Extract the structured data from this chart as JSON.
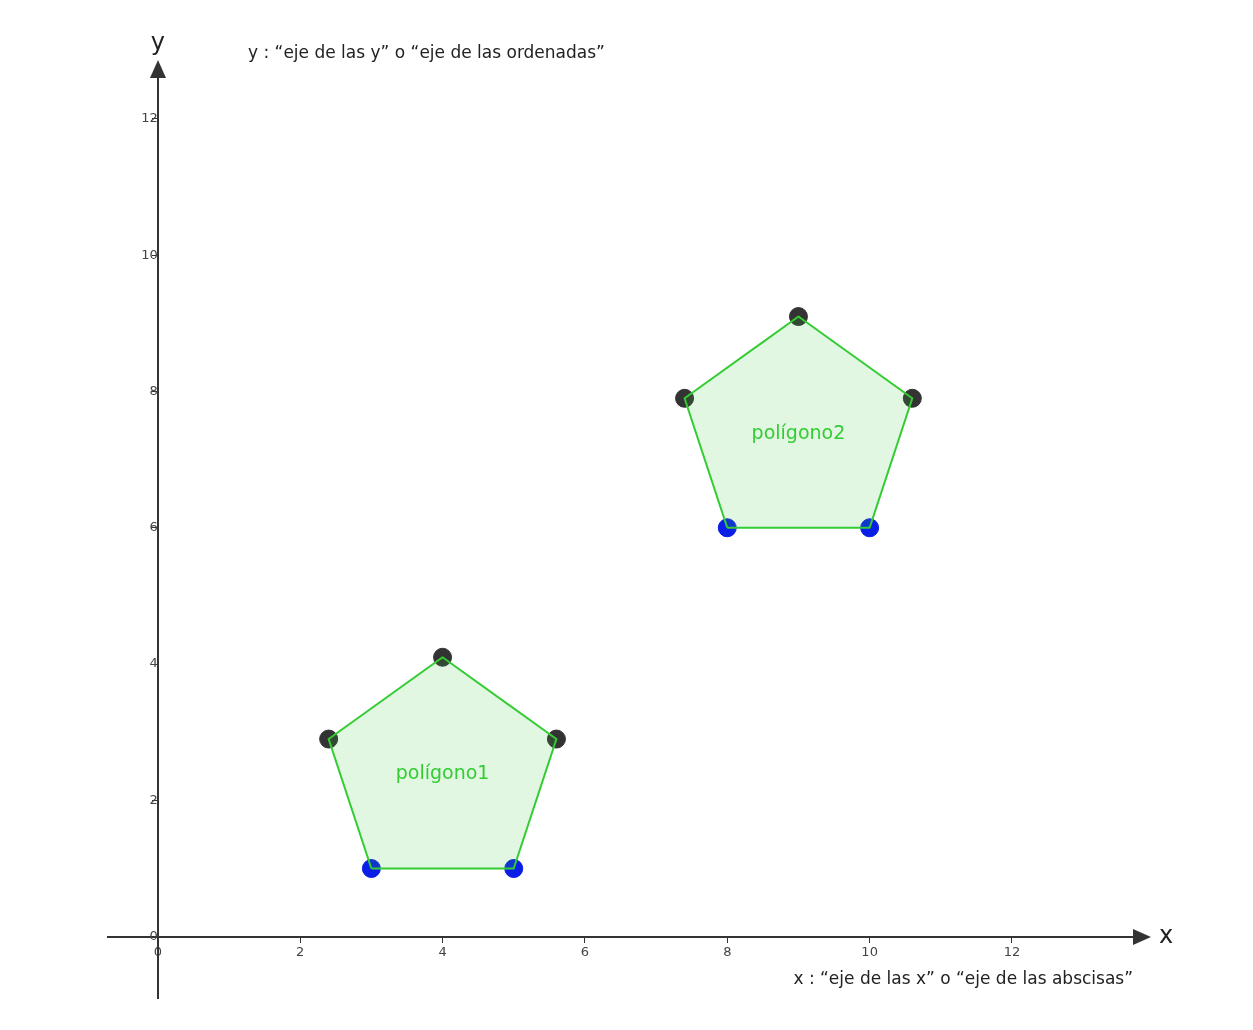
{
  "chart_data": {
    "type": "scatter",
    "xlabel": "x",
    "ylabel": "y",
    "xlim": [
      -0.7,
      13.7
    ],
    "ylim": [
      -0.9,
      12.6
    ],
    "xticks": [
      0,
      2,
      4,
      6,
      8,
      10,
      12
    ],
    "yticks": [
      0,
      2,
      4,
      6,
      8,
      10,
      12
    ],
    "annotations": [
      "y : “eje de las y” o “eje de las ordenadas”",
      "x : “eje de las x” o “eje de las abscisas”"
    ],
    "series": [
      {
        "name": "polígono1",
        "type": "area",
        "color": "#33cc33",
        "marker": "none",
        "x": [
          3,
          5,
          5.6,
          4,
          2.4,
          3
        ],
        "values": [
          1,
          1,
          2.9,
          4.1,
          2.9,
          1
        ]
      },
      {
        "name": "polígono2",
        "type": "area",
        "color": "#33cc33",
        "marker": "none",
        "x": [
          8,
          10,
          10.6,
          9,
          7.4,
          8
        ],
        "values": [
          6,
          6,
          7.9,
          9.1,
          7.9,
          6
        ]
      },
      {
        "marker": "circle",
        "x": [
          3,
          5,
          5.6,
          4,
          2.4,
          8,
          10,
          10.6,
          9,
          7.4
        ],
        "values": [
          1,
          1,
          2.9,
          4.1,
          2.9,
          6,
          6,
          7.9,
          9.1,
          7.9
        ],
        "colors": [
          "#0a1ee6",
          "#0a1ee6",
          "#333333",
          "#333333",
          "#333333",
          "#0a1ee6",
          "#0a1ee6",
          "#333333",
          "#333333",
          "#333333"
        ]
      }
    ]
  }
}
